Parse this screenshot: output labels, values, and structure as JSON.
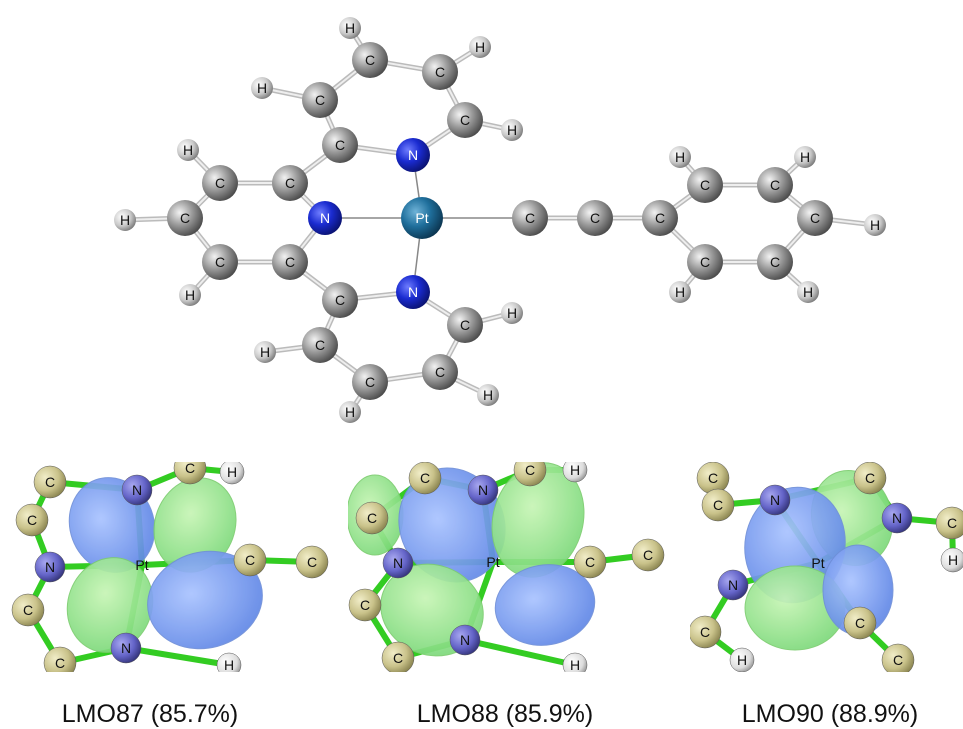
{
  "molecule": {
    "atoms": [
      "Pt",
      "N",
      "N",
      "N",
      "C",
      "C",
      "C",
      "C",
      "C",
      "C",
      "C",
      "C",
      "C",
      "C",
      "C",
      "C",
      "C",
      "C",
      "C",
      "C",
      "C",
      "C",
      "C",
      "C",
      "C",
      "C",
      "C",
      "H",
      "H",
      "H",
      "H",
      "H",
      "H",
      "H",
      "H",
      "H",
      "H",
      "H",
      "H",
      "H",
      "H",
      "H",
      "H"
    ]
  },
  "panels": [
    {
      "atoms": [
        "C",
        "N",
        "C",
        "H",
        "C",
        "N",
        "Pt",
        "C",
        "C",
        "C",
        "N",
        "C",
        "H"
      ],
      "caption": "LMO87 (85.7%)"
    },
    {
      "atoms": [
        "C",
        "N",
        "C",
        "H",
        "C",
        "N",
        "Pt",
        "C",
        "C",
        "C",
        "N",
        "C",
        "H"
      ],
      "caption": "LMO88 (85.9%)"
    },
    {
      "atoms": [
        "C",
        "C",
        "N",
        "C",
        "N",
        "C",
        "Pt",
        "H",
        "N",
        "C",
        "C",
        "H",
        "C"
      ],
      "caption": "LMO90 (88.9%)"
    }
  ]
}
